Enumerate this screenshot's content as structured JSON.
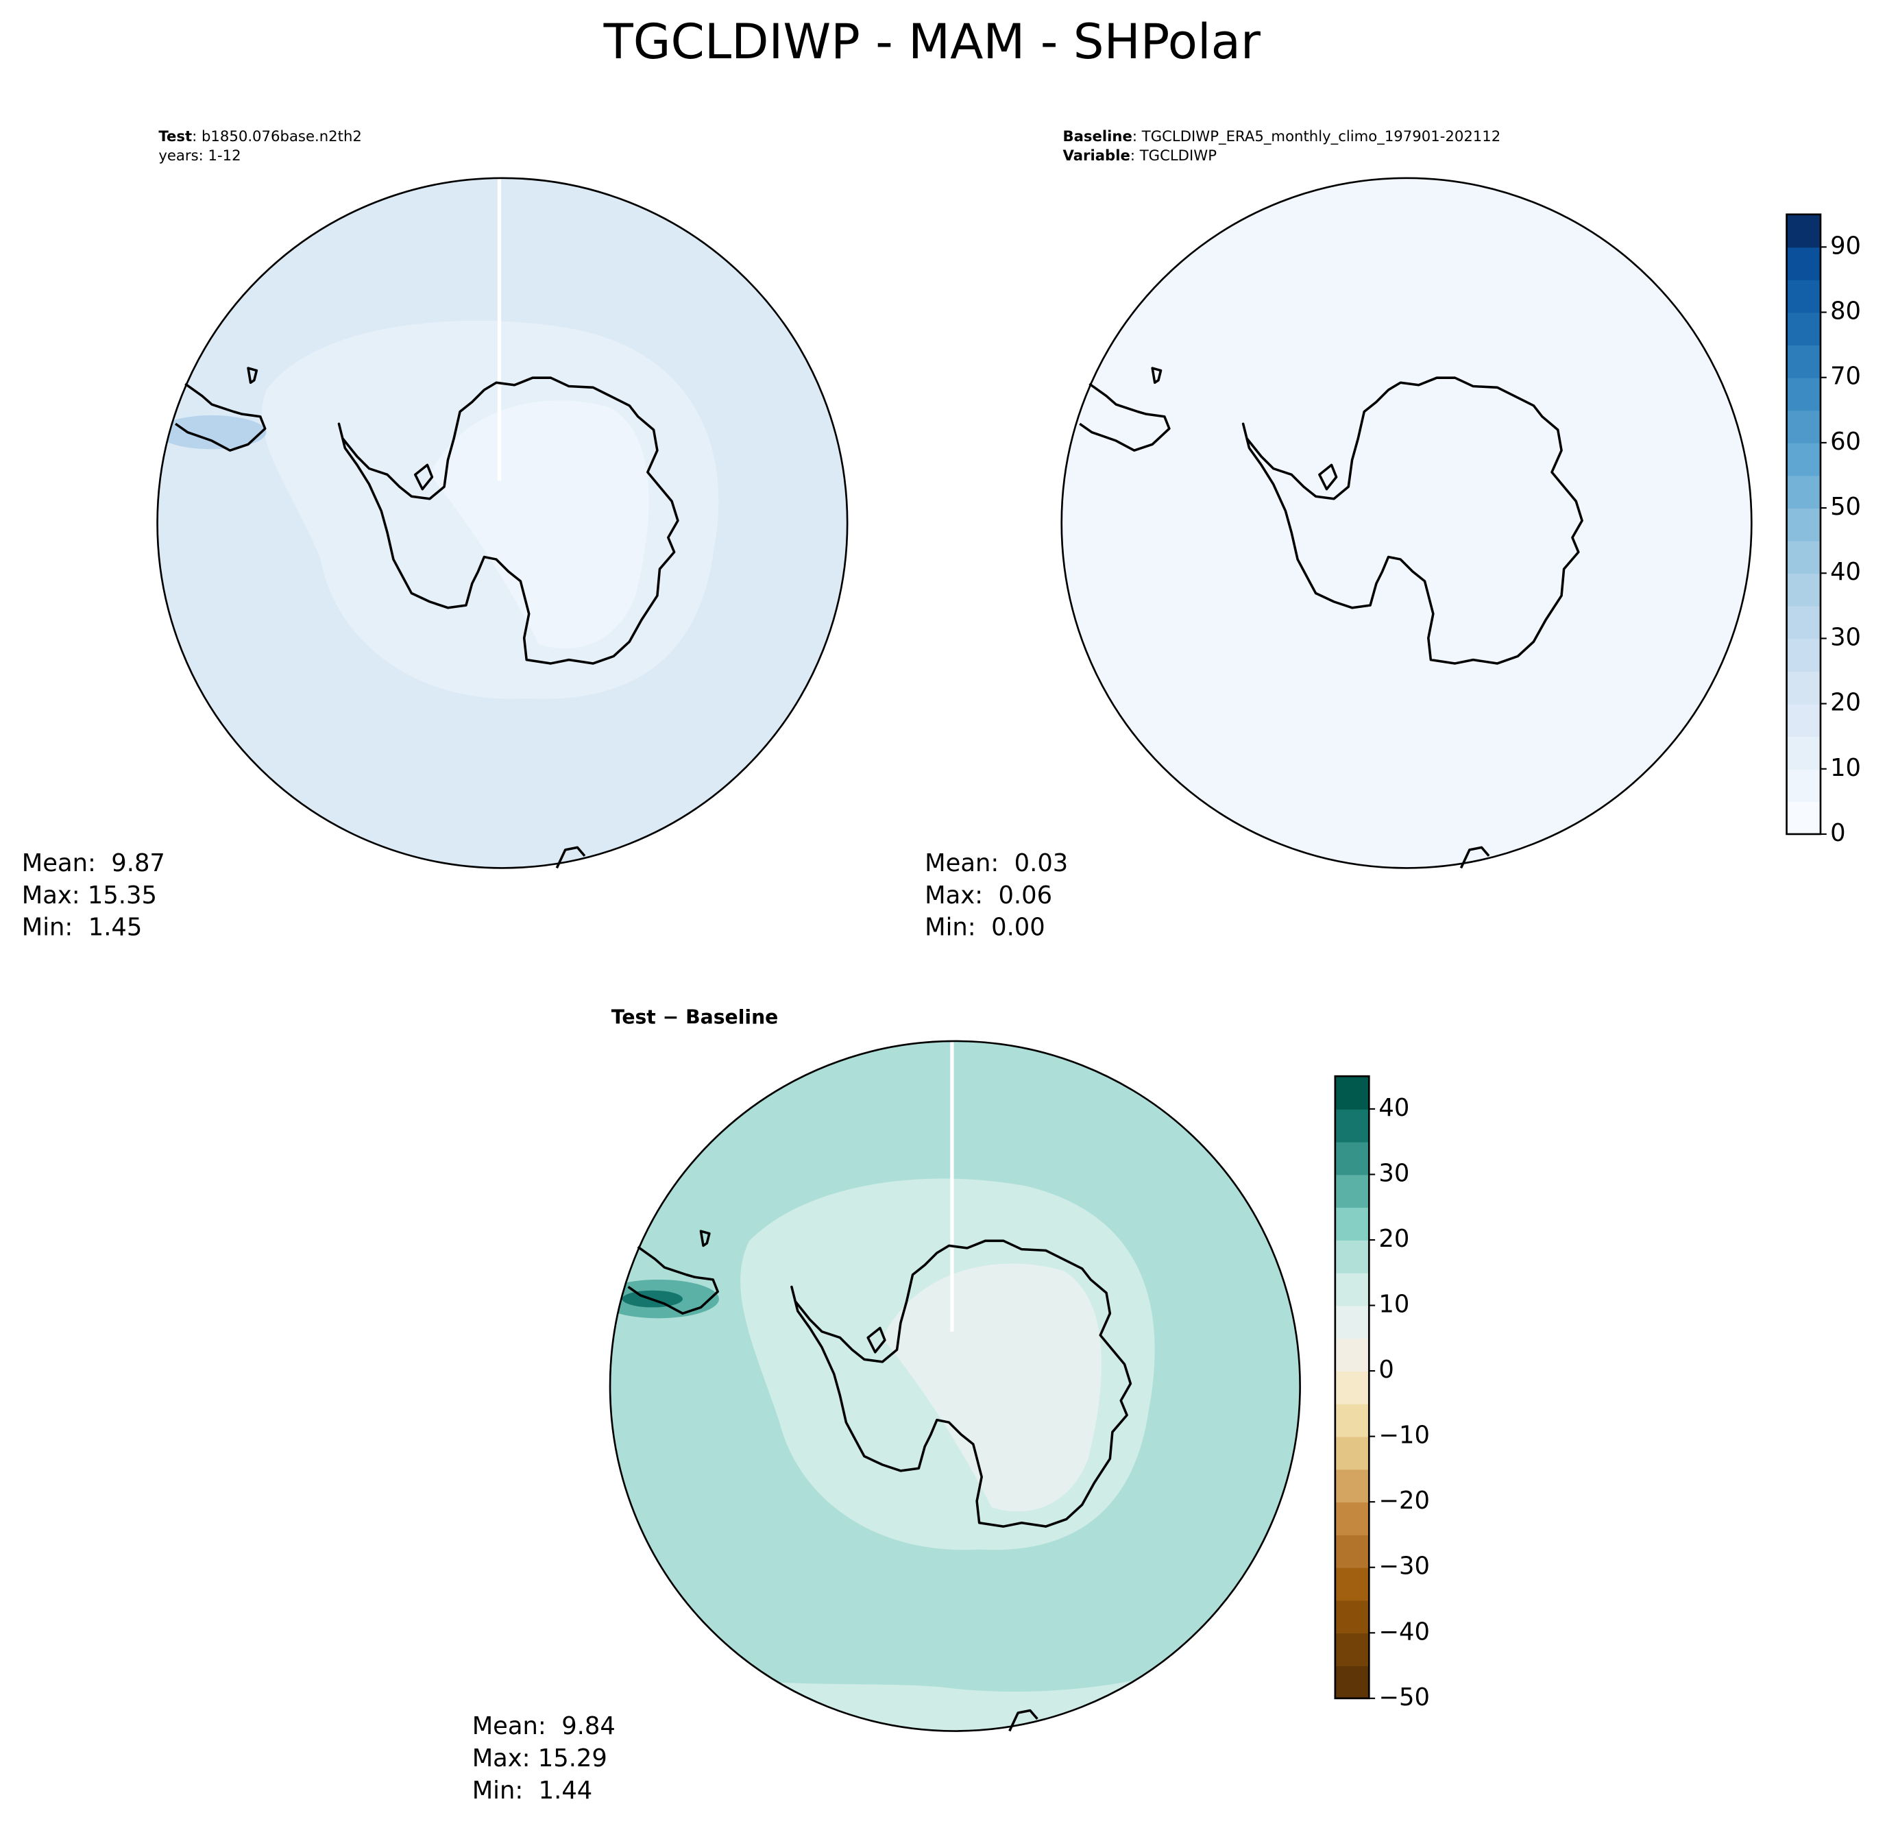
{
  "title": "TGCLDIWP - MAM - SHPolar",
  "panels": [
    {
      "header": [
        {
          "key": "Test",
          "text": ": b1850.076base.n2th2"
        },
        {
          "key": null,
          "text": "years: 1-12"
        }
      ],
      "stats": [
        "Mean:  9.87",
        "Max: 15.35",
        "Min:  1.45"
      ]
    },
    {
      "header": [
        {
          "key": "Baseline",
          "text": ": TGCLDIWP_ERA5_monthly_climo_197901-202112"
        },
        {
          "key": "Variable",
          "text": ": TGCLDIWP"
        }
      ],
      "stats": [
        "Mean:  0.03",
        "Max:  0.06",
        "Min:  0.00"
      ]
    },
    {
      "header": [
        {
          "key": "Test − Baseline",
          "text": null
        }
      ],
      "stats": [
        "Mean:  9.84",
        "Max: 15.29",
        "Min:  1.44"
      ]
    }
  ],
  "colorbars": [
    {
      "lim": [
        0,
        95
      ],
      "ticks": [
        0,
        10,
        20,
        30,
        40,
        50,
        60,
        70,
        80,
        90
      ],
      "colors": [
        "#f7fbff",
        "#eef5fc",
        "#e6f0f9",
        "#dde9f6",
        "#d4e4f3",
        "#c9ddf0",
        "#bcd7eb",
        "#aed0e6",
        "#9cc8e2",
        "#89bedc",
        "#74b2d8",
        "#60a6d2",
        "#4e99ca",
        "#3c8bc3",
        "#2d7dbb",
        "#1f6db1",
        "#1460a8",
        "#0a509b",
        "#08306b"
      ]
    },
    {
      "lim": [
        -50,
        45
      ],
      "ticks": [
        {
          "value": -50,
          "label": "−50"
        },
        {
          "value": -40,
          "label": "−40"
        },
        {
          "value": -30,
          "label": "−30"
        },
        {
          "value": -20,
          "label": "−20"
        },
        {
          "value": -10,
          "label": "−10"
        },
        0,
        10,
        20,
        30,
        40
      ],
      "colors": [
        "#5e3506",
        "#734208",
        "#8a500a",
        "#a0600f",
        "#b2732a",
        "#c4893f",
        "#d3a560",
        "#e3c585",
        "#efdba5",
        "#f5e9c9",
        "#f3eee4",
        "#e6f1ef",
        "#d1ece7",
        "#b0e0d8",
        "#86cfc4",
        "#5bb1a6",
        "#35938a",
        "#15766e",
        "#01584c"
      ]
    }
  ]
}
